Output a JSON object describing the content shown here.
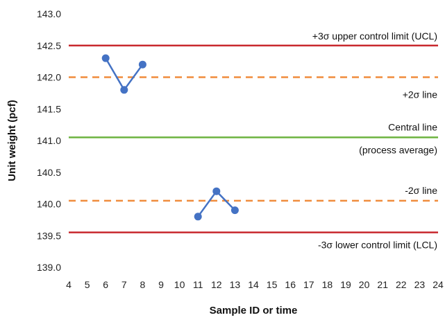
{
  "chart_data": {
    "type": "line",
    "title": "",
    "xlabel": "Sample ID or time",
    "ylabel": "Unit weight (pcf)",
    "xlim": [
      4,
      24
    ],
    "ylim": [
      139.0,
      143.0
    ],
    "x_ticks": [
      "4",
      "5",
      "6",
      "7",
      "8",
      "9",
      "10",
      "11",
      "12",
      "13",
      "14",
      "15",
      "16",
      "17",
      "18",
      "19",
      "20",
      "21",
      "22",
      "23",
      "24"
    ],
    "y_ticks": [
      "139.0",
      "139.5",
      "140.0",
      "140.5",
      "141.0",
      "141.5",
      "142.0",
      "142.5",
      "143.0"
    ],
    "grid": false,
    "reference_lines": [
      {
        "id": "ucl",
        "value": 142.5,
        "style": "solid",
        "color": "#c8282d",
        "labels": [
          "+3σ upper control limit (UCL)"
        ]
      },
      {
        "id": "plus2",
        "value": 142.0,
        "style": "dashed",
        "color": "#f08c3c",
        "labels": [
          "+2σ line"
        ]
      },
      {
        "id": "center",
        "value": 141.05,
        "style": "solid",
        "color": "#6cb33f",
        "labels": [
          "Central line",
          "(process average)"
        ]
      },
      {
        "id": "minus2",
        "value": 140.05,
        "style": "dashed",
        "color": "#f08c3c",
        "labels": [
          "-2σ line"
        ]
      },
      {
        "id": "lcl",
        "value": 139.55,
        "style": "solid",
        "color": "#c8282d",
        "labels": [
          "-3σ lower control limit (LCL)"
        ]
      }
    ],
    "series": [
      {
        "x": [
          6,
          7,
          8
        ],
        "y": [
          142.3,
          141.8,
          142.2
        ],
        "color": "#4472c4"
      },
      {
        "x": [
          11,
          12,
          13
        ],
        "y": [
          139.8,
          140.2,
          139.9
        ],
        "color": "#4472c4"
      }
    ]
  }
}
